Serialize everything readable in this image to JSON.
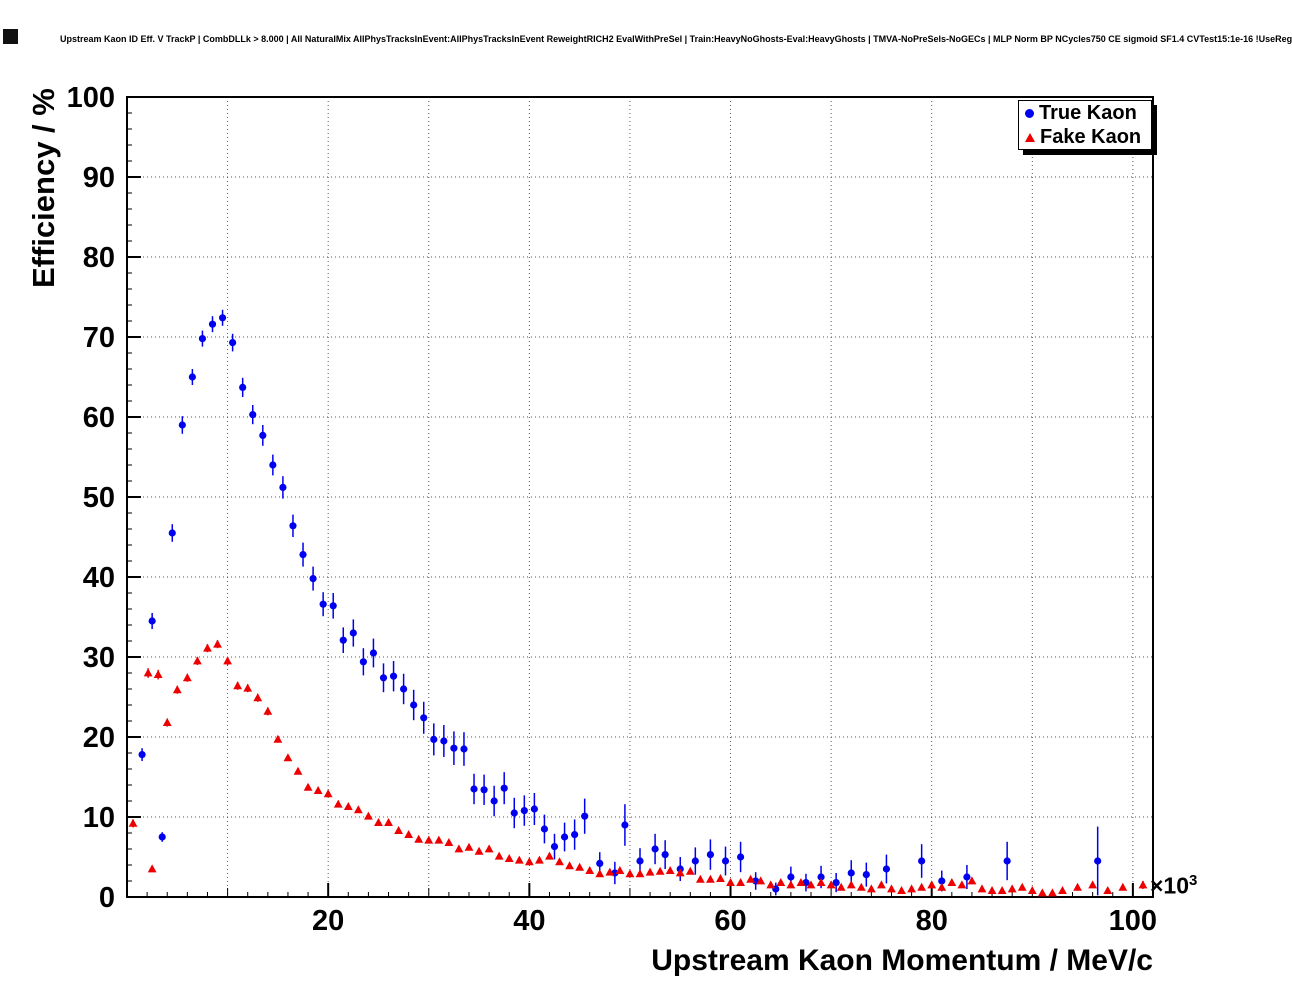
{
  "chart_data": {
    "type": "scatter",
    "title": "Upstream Kaon ID Eff. V TrackP | CombDLLk > 8.000 | All NaturalMix AllPhysTracksInEvent:AllPhysTracksInEvent ReweightRICH2 EvalWithPreSel | Train:HeavyNoGhosts-Eval:HeavyGhosts | TMVA-NoPreSels-NoGECs | MLP Norm BP NCycles750 CE sigmoid SF1.4 CVTest15:1e-16 !UseReg",
    "xlabel": "Upstream Kaon Momentum / MeV/c",
    "ylabel": "Efficiency / %",
    "x_multiplier": {
      "base": "×10",
      "exp": "3"
    },
    "xlim": [
      0,
      102
    ],
    "ylim": [
      0,
      100
    ],
    "x_major_ticks": [
      20,
      40,
      60,
      80,
      100
    ],
    "y_major_ticks": [
      0,
      10,
      20,
      30,
      40,
      50,
      60,
      70,
      80,
      90,
      100
    ],
    "grid": "dotted",
    "grid_color": "#555555",
    "frame_color": "#000000",
    "legend_position": "top-right",
    "series": [
      {
        "name": "True Kaon",
        "marker": "circle",
        "color": "#0000f0",
        "points": [
          [
            1.5,
            17.8,
            0.8
          ],
          [
            2.5,
            34.5,
            1.0
          ],
          [
            3.5,
            7.5,
            0.6
          ],
          [
            4.5,
            45.5,
            1.1
          ],
          [
            5.5,
            59.0,
            1.1
          ],
          [
            6.5,
            65.0,
            1.0
          ],
          [
            7.5,
            69.8,
            1.0
          ],
          [
            8.5,
            71.6,
            1.0
          ],
          [
            9.5,
            72.4,
            1.0
          ],
          [
            10.5,
            69.3,
            1.1
          ],
          [
            11.5,
            63.7,
            1.2
          ],
          [
            12.5,
            60.3,
            1.2
          ],
          [
            13.5,
            57.7,
            1.3
          ],
          [
            14.5,
            54.0,
            1.3
          ],
          [
            15.5,
            51.2,
            1.4
          ],
          [
            16.5,
            46.4,
            1.4
          ],
          [
            17.5,
            42.8,
            1.5
          ],
          [
            18.5,
            39.8,
            1.5
          ],
          [
            19.5,
            36.6,
            1.5
          ],
          [
            20.5,
            36.4,
            1.6
          ],
          [
            21.5,
            32.1,
            1.6
          ],
          [
            22.5,
            33.0,
            1.7
          ],
          [
            23.5,
            29.4,
            1.7
          ],
          [
            24.5,
            30.5,
            1.8
          ],
          [
            25.5,
            27.4,
            1.8
          ],
          [
            26.5,
            27.6,
            1.9
          ],
          [
            27.5,
            26.0,
            1.9
          ],
          [
            28.5,
            24.0,
            1.9
          ],
          [
            29.5,
            22.4,
            2.0
          ],
          [
            30.5,
            19.7,
            2.0
          ],
          [
            31.5,
            19.5,
            2.0
          ],
          [
            32.5,
            18.6,
            2.1
          ],
          [
            33.5,
            18.5,
            2.1
          ],
          [
            34.5,
            13.5,
            1.9
          ],
          [
            35.5,
            13.4,
            1.9
          ],
          [
            36.5,
            12.0,
            1.9
          ],
          [
            37.5,
            13.6,
            2.0
          ],
          [
            38.5,
            10.5,
            1.9
          ],
          [
            39.5,
            10.8,
            1.9
          ],
          [
            40.5,
            11.0,
            2.0
          ],
          [
            41.5,
            8.5,
            1.8
          ],
          [
            42.5,
            6.3,
            1.6
          ],
          [
            43.5,
            7.5,
            1.8
          ],
          [
            44.5,
            7.8,
            1.9
          ],
          [
            45.5,
            10.1,
            2.2
          ],
          [
            47.0,
            4.2,
            1.4
          ],
          [
            48.5,
            3.0,
            1.4
          ],
          [
            49.5,
            9.0,
            2.6
          ],
          [
            51.0,
            4.5,
            1.6
          ],
          [
            52.5,
            6.0,
            1.9
          ],
          [
            53.5,
            5.3,
            1.8
          ],
          [
            55.0,
            3.5,
            1.5
          ],
          [
            56.5,
            4.5,
            1.7
          ],
          [
            58.0,
            5.3,
            1.9
          ],
          [
            59.5,
            4.5,
            1.8
          ],
          [
            61.0,
            5.0,
            1.9
          ],
          [
            62.5,
            2.0,
            1.1
          ],
          [
            64.5,
            1.0,
            0.8
          ],
          [
            66.0,
            2.5,
            1.3
          ],
          [
            67.5,
            1.8,
            1.1
          ],
          [
            69.0,
            2.5,
            1.4
          ],
          [
            70.5,
            1.8,
            1.2
          ],
          [
            72.0,
            3.0,
            1.6
          ],
          [
            73.5,
            2.8,
            1.5
          ],
          [
            75.5,
            3.5,
            1.8
          ],
          [
            79.0,
            4.5,
            2.1
          ],
          [
            81.0,
            2.0,
            1.3
          ],
          [
            83.5,
            2.5,
            1.5
          ],
          [
            87.5,
            4.5,
            2.4
          ],
          [
            96.5,
            4.5,
            4.3
          ]
        ]
      },
      {
        "name": "Fake Kaon",
        "marker": "triangle",
        "color": "#ee0000",
        "points": [
          [
            0.6,
            9.2,
            0.5
          ],
          [
            2.1,
            28.0,
            0.6
          ],
          [
            2.5,
            3.5,
            0.3
          ],
          [
            3.1,
            27.8,
            0.6
          ],
          [
            4,
            21.8,
            0.5
          ],
          [
            5,
            25.9,
            0.5
          ],
          [
            6,
            27.4,
            0.5
          ],
          [
            7,
            29.5,
            0.5
          ],
          [
            8,
            31.1,
            0.5
          ],
          [
            9,
            31.6,
            0.5
          ],
          [
            10,
            29.5,
            0.5
          ],
          [
            11,
            26.4,
            0.5
          ],
          [
            12,
            26.1,
            0.5
          ],
          [
            13,
            24.9,
            0.5
          ],
          [
            14,
            23.2,
            0.5
          ],
          [
            15,
            19.7,
            0.4
          ],
          [
            16,
            17.4,
            0.4
          ],
          [
            17,
            15.7,
            0.4
          ],
          [
            18,
            13.7,
            0.4
          ],
          [
            19,
            13.3,
            0.4
          ],
          [
            20,
            12.9,
            0.4
          ],
          [
            21,
            11.6,
            0.4
          ],
          [
            22,
            11.3,
            0.4
          ],
          [
            23,
            10.9,
            0.4
          ],
          [
            24,
            10.1,
            0.4
          ],
          [
            25,
            9.3,
            0.4
          ],
          [
            26,
            9.3,
            0.4
          ],
          [
            27,
            8.3,
            0.3
          ],
          [
            28,
            7.8,
            0.3
          ],
          [
            29,
            7.2,
            0.3
          ],
          [
            30,
            7.1,
            0.3
          ],
          [
            31,
            7.1,
            0.3
          ],
          [
            32,
            6.8,
            0.3
          ],
          [
            33,
            6.0,
            0.3
          ],
          [
            34,
            6.2,
            0.3
          ],
          [
            35,
            5.7,
            0.3
          ],
          [
            36,
            6.0,
            0.3
          ],
          [
            37,
            5.1,
            0.3
          ],
          [
            38,
            4.8,
            0.3
          ],
          [
            39,
            4.6,
            0.3
          ],
          [
            40,
            4.4,
            0.3
          ],
          [
            41,
            4.6,
            0.3
          ],
          [
            42,
            5.1,
            0.3
          ],
          [
            43,
            4.4,
            0.3
          ],
          [
            44,
            3.9,
            0.3
          ],
          [
            45,
            3.7,
            0.3
          ],
          [
            46,
            3.3,
            0.3
          ],
          [
            47,
            2.9,
            0.3
          ],
          [
            48,
            3.1,
            0.3
          ],
          [
            49,
            3.3,
            0.3
          ],
          [
            50,
            2.9,
            0.3
          ],
          [
            51,
            2.9,
            0.3
          ],
          [
            52,
            3.1,
            0.3
          ],
          [
            53,
            3.2,
            0.3
          ],
          [
            54,
            3.3,
            0.3
          ],
          [
            55,
            3.0,
            0.3
          ],
          [
            56,
            3.2,
            0.3
          ],
          [
            57,
            2.2,
            0.3
          ],
          [
            58,
            2.2,
            0.3
          ],
          [
            59,
            2.3,
            0.3
          ],
          [
            60,
            1.8,
            0.3
          ],
          [
            61,
            1.8,
            0.3
          ],
          [
            62,
            2.2,
            0.3
          ],
          [
            63,
            2.0,
            0.3
          ],
          [
            64,
            1.5,
            0.2
          ],
          [
            65,
            1.8,
            0.3
          ],
          [
            66,
            1.5,
            0.2
          ],
          [
            67,
            1.8,
            0.3
          ],
          [
            68,
            1.5,
            0.2
          ],
          [
            69,
            1.8,
            0.3
          ],
          [
            70,
            1.5,
            0.2
          ],
          [
            71,
            1.2,
            0.2
          ],
          [
            72,
            1.5,
            0.3
          ],
          [
            73,
            1.2,
            0.2
          ],
          [
            74,
            1.0,
            0.2
          ],
          [
            75,
            1.5,
            0.3
          ],
          [
            76,
            1.0,
            0.2
          ],
          [
            77,
            0.8,
            0.2
          ],
          [
            78,
            1.0,
            0.2
          ],
          [
            79,
            1.2,
            0.3
          ],
          [
            80,
            1.5,
            0.3
          ],
          [
            81,
            1.2,
            0.3
          ],
          [
            82,
            1.8,
            0.4
          ],
          [
            83,
            1.5,
            0.3
          ],
          [
            84,
            2.0,
            0.4
          ],
          [
            85,
            1.0,
            0.3
          ],
          [
            86,
            0.8,
            0.2
          ],
          [
            87,
            0.8,
            0.2
          ],
          [
            88,
            1.0,
            0.3
          ],
          [
            89,
            1.2,
            0.3
          ],
          [
            90,
            0.8,
            0.2
          ],
          [
            91,
            0.5,
            0.2
          ],
          [
            92,
            0.5,
            0.2
          ],
          [
            93,
            0.8,
            0.3
          ],
          [
            94.5,
            1.2,
            0.4
          ],
          [
            96,
            1.5,
            0.4
          ],
          [
            97.5,
            0.8,
            0.3
          ],
          [
            99,
            1.2,
            0.4
          ],
          [
            101,
            1.5,
            0.5
          ]
        ]
      }
    ]
  }
}
